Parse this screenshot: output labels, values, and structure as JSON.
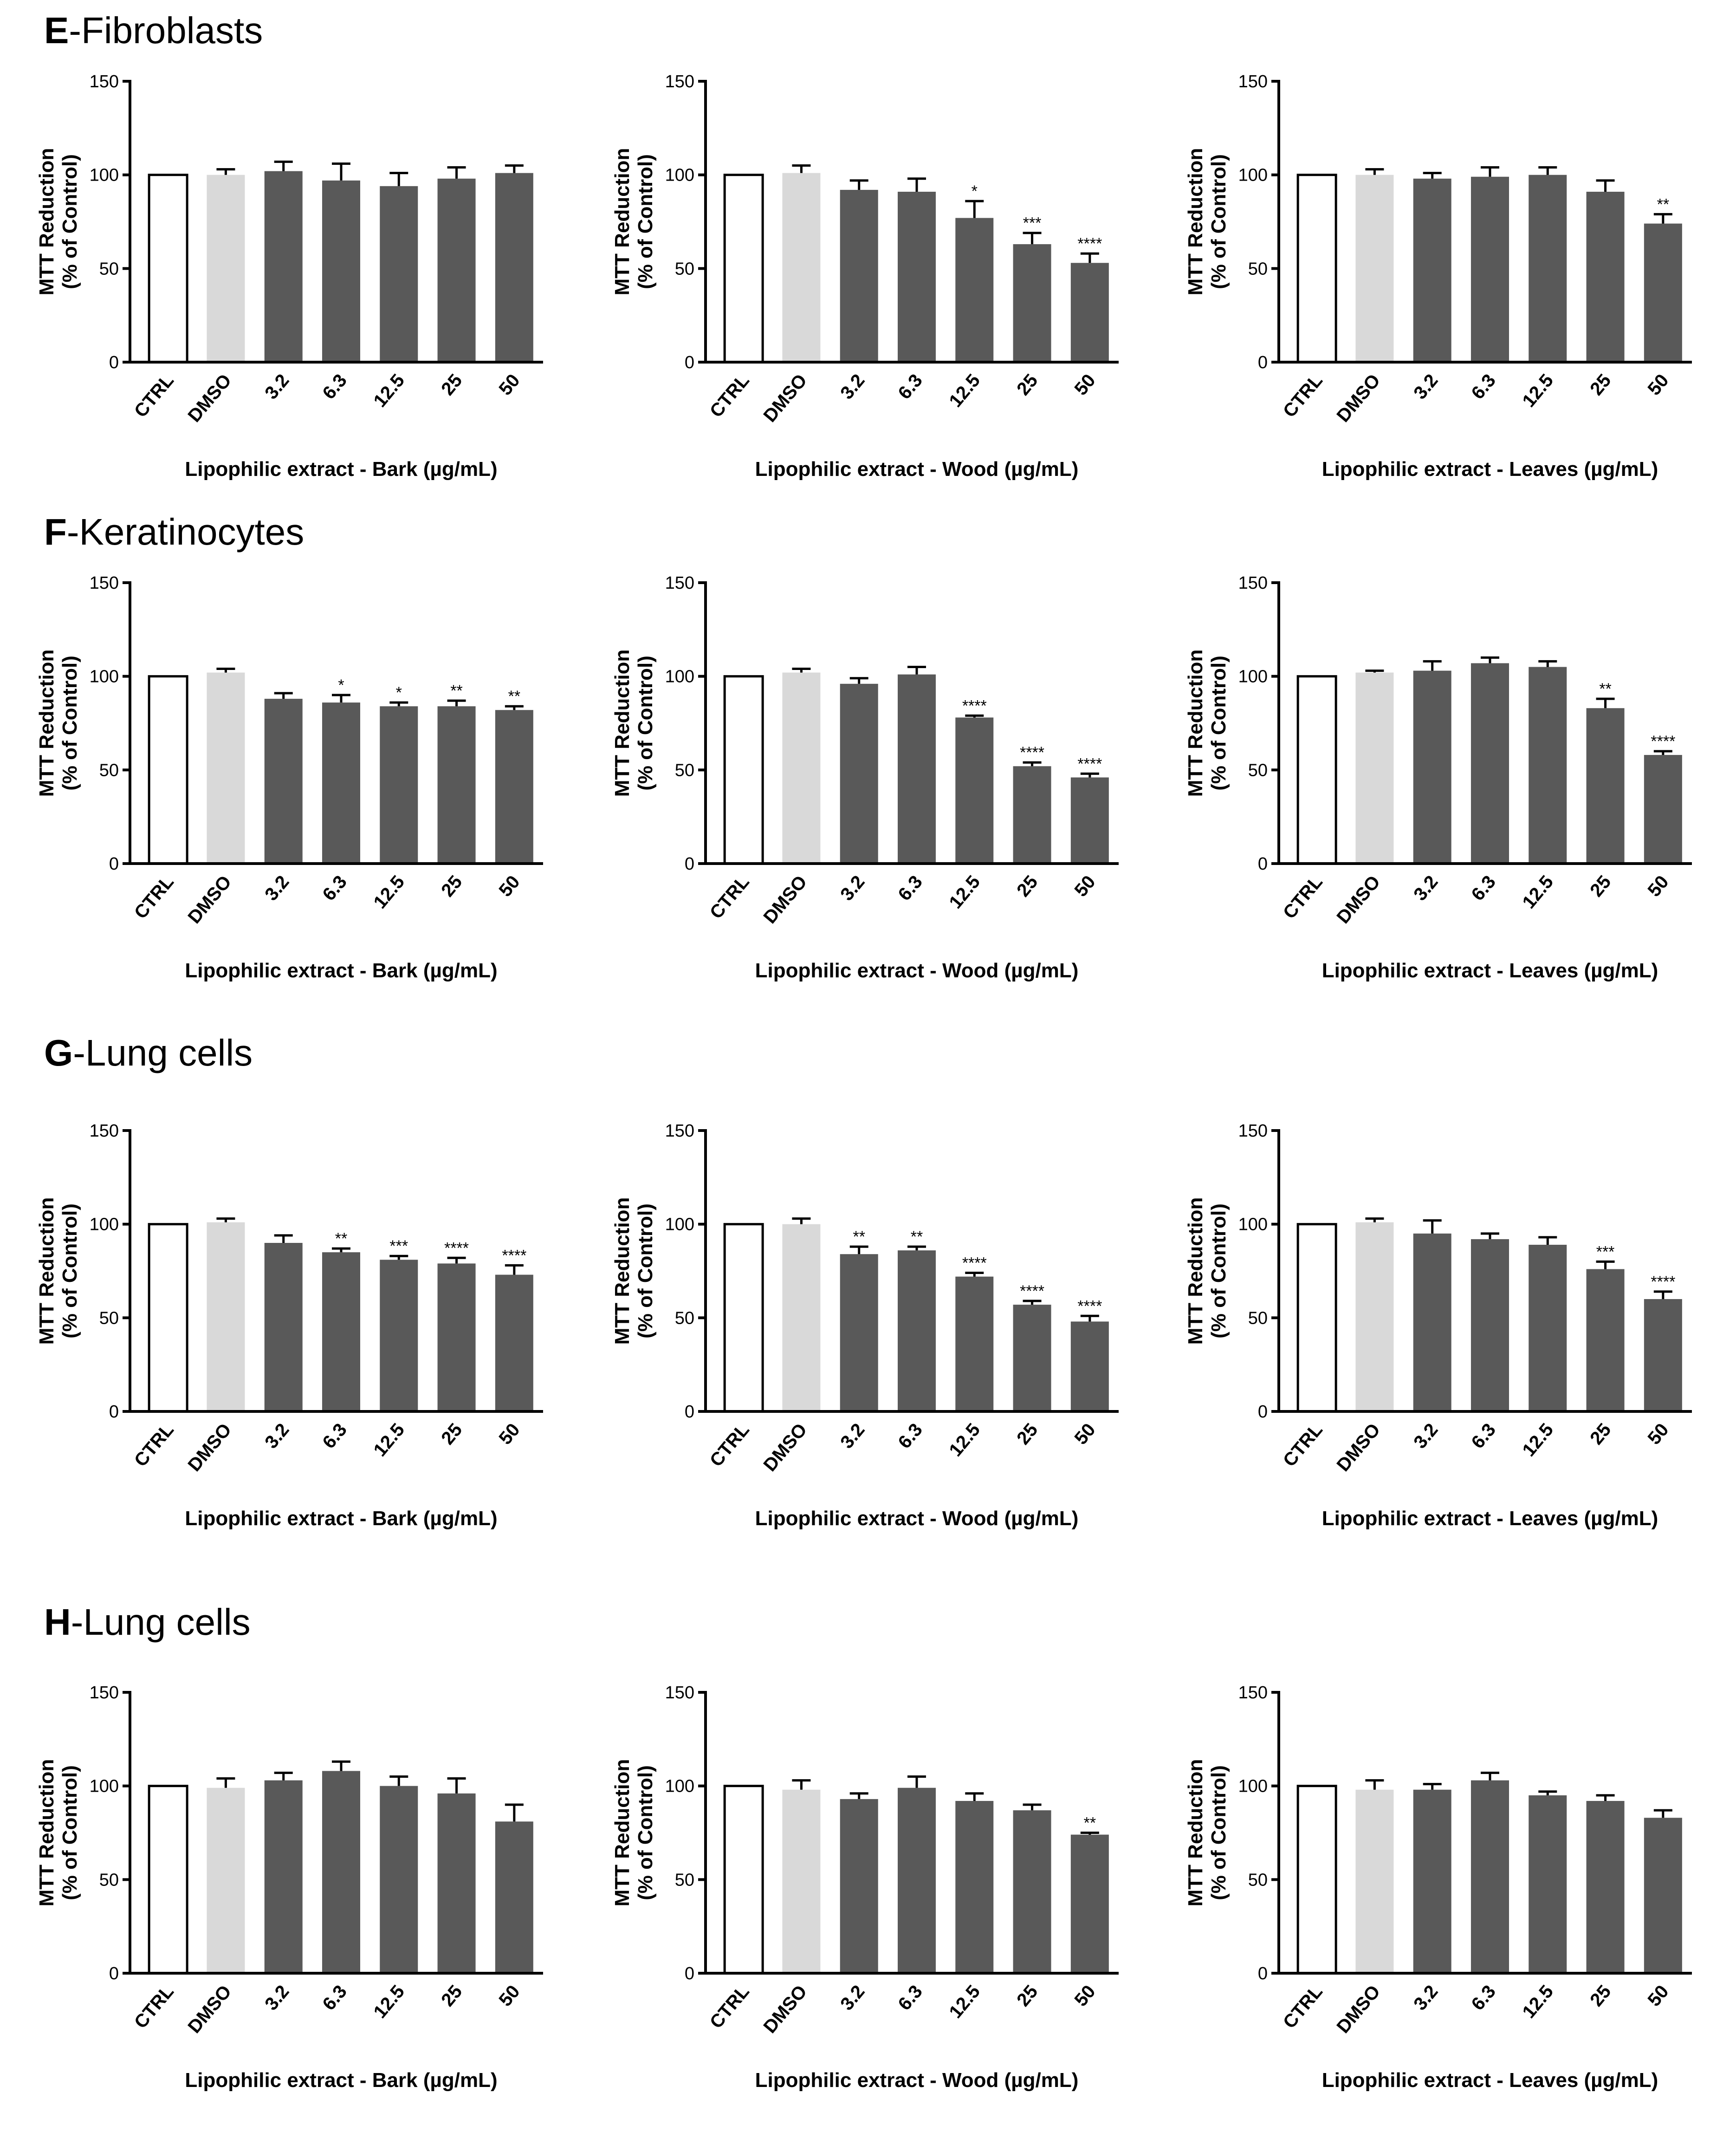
{
  "figure": {
    "sections": [
      {
        "letter": "E",
        "title": "-Fibroblasts"
      },
      {
        "letter": "F",
        "title": "-Keratinocytes"
      },
      {
        "letter": "G",
        "title": "-Lung cells"
      },
      {
        "letter": "H",
        "title": "-Lung cells"
      }
    ]
  },
  "colors": {
    "ctrl": "#ffffff",
    "dmso": "#d9d9d9",
    "extract": "#595959",
    "axis": "#000000",
    "baseline_accent": "#1a7a1a"
  },
  "chart_data": [
    {
      "type": "bar",
      "section": "E",
      "ylabel_line1": "MTT Reduction",
      "ylabel_line2": "(% of Control)",
      "xlabel": "Lipophilic extract - Bark (µg/mL)",
      "categories": [
        "CTRL",
        "DMSO",
        "3.2",
        "6.3",
        "12.5",
        "25",
        "50"
      ],
      "values": [
        100,
        100,
        102,
        97,
        94,
        98,
        101
      ],
      "errors": [
        0,
        3,
        5,
        9,
        7,
        6,
        4
      ],
      "significance": [
        "",
        "",
        "",
        "",
        "",
        "",
        ""
      ],
      "ylim": [
        0,
        150
      ],
      "yticks": [
        0,
        50,
        100,
        150
      ]
    },
    {
      "type": "bar",
      "section": "E",
      "ylabel_line1": "MTT Reduction",
      "ylabel_line2": "(% of Control)",
      "xlabel": "Lipophilic extract - Wood (µg/mL)",
      "categories": [
        "CTRL",
        "DMSO",
        "3.2",
        "6.3",
        "12.5",
        "25",
        "50"
      ],
      "values": [
        100,
        101,
        92,
        91,
        77,
        63,
        53
      ],
      "errors": [
        0,
        4,
        5,
        7,
        9,
        6,
        5
      ],
      "significance": [
        "",
        "",
        "",
        "",
        "*",
        "***",
        "****"
      ],
      "ylim": [
        0,
        150
      ],
      "yticks": [
        0,
        50,
        100,
        150
      ]
    },
    {
      "type": "bar",
      "section": "E",
      "ylabel_line1": "MTT Reduction",
      "ylabel_line2": "(% of Control)",
      "xlabel": "Lipophilic extract - Leaves (µg/mL)",
      "categories": [
        "CTRL",
        "DMSO",
        "3.2",
        "6.3",
        "12.5",
        "25",
        "50"
      ],
      "values": [
        100,
        100,
        98,
        99,
        100,
        91,
        74
      ],
      "errors": [
        0,
        3,
        3,
        5,
        4,
        6,
        5
      ],
      "significance": [
        "",
        "",
        "",
        "",
        "",
        "",
        "**"
      ],
      "ylim": [
        0,
        150
      ],
      "yticks": [
        0,
        50,
        100,
        150
      ]
    },
    {
      "type": "bar",
      "section": "F",
      "ylabel_line1": "MTT Reduction",
      "ylabel_line2": "(% of Control)",
      "xlabel": "Lipophilic extract - Bark (µg/mL)",
      "categories": [
        "CTRL",
        "DMSO",
        "3.2",
        "6.3",
        "12.5",
        "25",
        "50"
      ],
      "values": [
        100,
        102,
        88,
        86,
        84,
        84,
        82
      ],
      "errors": [
        0,
        2,
        3,
        4,
        2,
        3,
        2
      ],
      "significance": [
        "",
        "",
        "",
        "*",
        "*",
        "**",
        "**"
      ],
      "ylim": [
        0,
        150
      ],
      "yticks": [
        0,
        50,
        100,
        150
      ]
    },
    {
      "type": "bar",
      "section": "F",
      "ylabel_line1": "MTT Reduction",
      "ylabel_line2": "(% of Control)",
      "xlabel": "Lipophilic extract - Wood (µg/mL)",
      "categories": [
        "CTRL",
        "DMSO",
        "3.2",
        "6.3",
        "12.5",
        "25",
        "50"
      ],
      "values": [
        100,
        102,
        96,
        101,
        78,
        52,
        46
      ],
      "errors": [
        0,
        2,
        3,
        4,
        1,
        2,
        2
      ],
      "significance": [
        "",
        "",
        "",
        "",
        "****",
        "****",
        "****"
      ],
      "ylim": [
        0,
        150
      ],
      "yticks": [
        0,
        50,
        100,
        150
      ]
    },
    {
      "type": "bar",
      "section": "F",
      "ylabel_line1": "MTT Reduction",
      "ylabel_line2": "(% of Control)",
      "xlabel": "Lipophilic extract - Leaves (µg/mL)",
      "categories": [
        "CTRL",
        "DMSO",
        "3.2",
        "6.3",
        "12.5",
        "25",
        "50"
      ],
      "values": [
        100,
        102,
        103,
        107,
        105,
        83,
        58
      ],
      "errors": [
        0,
        1,
        5,
        3,
        3,
        5,
        2
      ],
      "significance": [
        "",
        "",
        "",
        "",
        "",
        "**",
        "****"
      ],
      "ylim": [
        0,
        150
      ],
      "yticks": [
        0,
        50,
        100,
        150
      ]
    },
    {
      "type": "bar",
      "section": "G",
      "ylabel_line1": "MTT Reduction",
      "ylabel_line2": "(% of Control)",
      "xlabel": "Lipophilic extract - Bark (µg/mL)",
      "categories": [
        "CTRL",
        "DMSO",
        "3.2",
        "6.3",
        "12.5",
        "25",
        "50"
      ],
      "values": [
        100,
        101,
        90,
        85,
        81,
        79,
        73
      ],
      "errors": [
        0,
        2,
        4,
        2,
        2,
        3,
        5
      ],
      "significance": [
        "",
        "",
        "",
        "**",
        "***",
        "****",
        "****"
      ],
      "ylim": [
        0,
        150
      ],
      "yticks": [
        0,
        50,
        100,
        150
      ]
    },
    {
      "type": "bar",
      "section": "G",
      "ylabel_line1": "MTT Reduction",
      "ylabel_line2": "(% of Control)",
      "xlabel": "Lipophilic extract - Wood (µg/mL)",
      "categories": [
        "CTRL",
        "DMSO",
        "3.2",
        "6.3",
        "12.5",
        "25",
        "50"
      ],
      "values": [
        100,
        100,
        84,
        86,
        72,
        57,
        48
      ],
      "errors": [
        0,
        3,
        4,
        2,
        2,
        2,
        3
      ],
      "significance": [
        "",
        "",
        "**",
        "**",
        "****",
        "****",
        "****"
      ],
      "ylim": [
        0,
        150
      ],
      "yticks": [
        0,
        50,
        100,
        150
      ]
    },
    {
      "type": "bar",
      "section": "G",
      "ylabel_line1": "MTT Reduction",
      "ylabel_line2": "(% of Control)",
      "xlabel": "Lipophilic extract - Leaves (µg/mL)",
      "categories": [
        "CTRL",
        "DMSO",
        "3.2",
        "6.3",
        "12.5",
        "25",
        "50"
      ],
      "values": [
        100,
        101,
        95,
        92,
        89,
        76,
        60
      ],
      "errors": [
        0,
        2,
        7,
        3,
        4,
        4,
        4
      ],
      "significance": [
        "",
        "",
        "",
        "",
        "",
        "***",
        "****"
      ],
      "ylim": [
        0,
        150
      ],
      "yticks": [
        0,
        50,
        100,
        150
      ]
    },
    {
      "type": "bar",
      "section": "H",
      "ylabel_line1": "MTT Reduction",
      "ylabel_line2": "(% of Control)",
      "xlabel": "Lipophilic extract - Bark (µg/mL)",
      "categories": [
        "CTRL",
        "DMSO",
        "3.2",
        "6.3",
        "12.5",
        "25",
        "50"
      ],
      "values": [
        100,
        99,
        103,
        108,
        100,
        96,
        81
      ],
      "errors": [
        0,
        5,
        4,
        5,
        5,
        8,
        9
      ],
      "significance": [
        "",
        "",
        "",
        "",
        "",
        "",
        ""
      ],
      "ylim": [
        0,
        150
      ],
      "yticks": [
        0,
        50,
        100,
        150
      ]
    },
    {
      "type": "bar",
      "section": "H",
      "ylabel_line1": "MTT Reduction",
      "ylabel_line2": "(% of Control)",
      "xlabel": "Lipophilic extract - Wood (µg/mL)",
      "categories": [
        "CTRL",
        "DMSO",
        "3.2",
        "6.3",
        "12.5",
        "25",
        "50"
      ],
      "values": [
        100,
        98,
        93,
        99,
        92,
        87,
        74
      ],
      "errors": [
        0,
        5,
        3,
        6,
        4,
        3,
        1
      ],
      "significance": [
        "",
        "",
        "",
        "",
        "",
        "",
        "**"
      ],
      "ylim": [
        0,
        150
      ],
      "yticks": [
        0,
        50,
        100,
        150
      ]
    },
    {
      "type": "bar",
      "section": "H",
      "ylabel_line1": "MTT Reduction",
      "ylabel_line2": "(% of Control)",
      "xlabel": "Lipophilic extract - Leaves (µg/mL)",
      "categories": [
        "CTRL",
        "DMSO",
        "3.2",
        "6.3",
        "12.5",
        "25",
        "50"
      ],
      "values": [
        100,
        98,
        98,
        103,
        95,
        92,
        83
      ],
      "errors": [
        0,
        5,
        3,
        4,
        2,
        3,
        4
      ],
      "significance": [
        "",
        "",
        "",
        "",
        "",
        "",
        ""
      ],
      "ylim": [
        0,
        150
      ],
      "yticks": [
        0,
        50,
        100,
        150
      ]
    }
  ]
}
